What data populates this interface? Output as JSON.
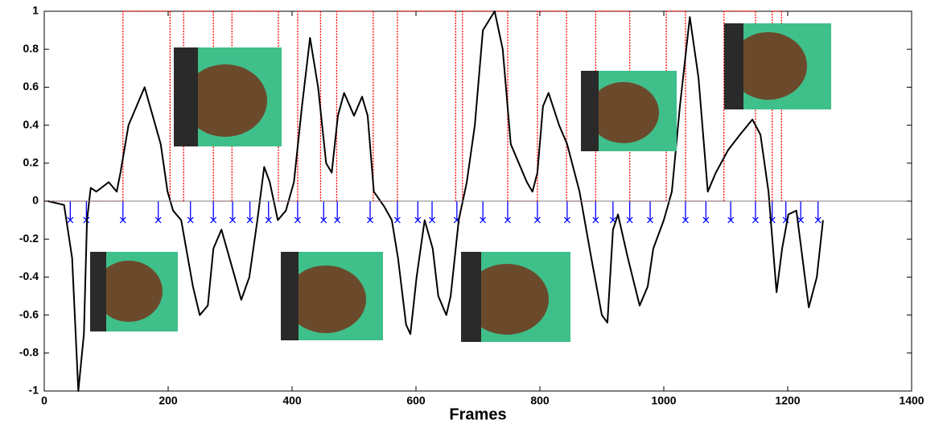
{
  "chart_data": {
    "type": "line",
    "xlabel": "Frames",
    "xlim": [
      0,
      1400
    ],
    "xticks": [
      0,
      200,
      400,
      600,
      800,
      1000,
      1200,
      1400
    ],
    "ylim": [
      -1,
      1
    ],
    "yticks": [
      -1,
      -0.8,
      -0.6,
      -0.4,
      -0.2,
      0,
      0.2,
      0.4,
      0.6,
      0.8,
      1
    ],
    "zero_line": true,
    "series": [
      {
        "type": "step",
        "color": "#ff0000",
        "x": [
          0,
          127,
          203,
          225,
          273,
          303,
          378,
          409,
          446,
          472,
          531,
          570,
          664,
          675,
          748,
          796,
          843,
          890,
          945,
          1004,
          1035,
          1097,
          1148,
          1175,
          1190,
          1249
        ],
        "values": [
          0,
          1,
          0,
          1,
          0,
          1,
          0,
          1,
          0,
          1,
          0,
          1,
          0,
          1,
          0,
          1,
          0,
          1,
          0,
          1,
          0,
          1,
          0,
          1,
          0,
          0
        ]
      },
      {
        "type": "stem",
        "color": "#0000ff",
        "x": [
          42,
          68,
          127,
          184,
          236,
          273,
          304,
          332,
          362,
          409,
          451,
          473,
          526,
          570,
          603,
          626,
          666,
          708,
          748,
          796,
          844,
          890,
          918,
          945,
          978,
          1035,
          1068,
          1108,
          1148,
          1175,
          1197,
          1221,
          1249
        ],
        "values": [
          -0.1,
          -0.1,
          -0.1,
          -0.1,
          -0.1,
          -0.1,
          -0.1,
          -0.1,
          -0.1,
          -0.1,
          -0.1,
          -0.1,
          -0.1,
          -0.1,
          -0.1,
          -0.1,
          -0.1,
          -0.1,
          -0.1,
          -0.1,
          -0.1,
          -0.1,
          -0.1,
          -0.1,
          -0.1,
          -0.1,
          -0.1,
          -0.1,
          -0.1,
          -0.1,
          -0.1,
          -0.1,
          -0.1
        ]
      },
      {
        "type": "line",
        "color": "#000000",
        "x": [
          6,
          32,
          45,
          55,
          64,
          69,
          75,
          84,
          104,
          117,
          123,
          136,
          149,
          162,
          175,
          188,
          199,
          208,
          221,
          240,
          251,
          264,
          273,
          286,
          299,
          318,
          331,
          344,
          355,
          364,
          377,
          390,
          403,
          416,
          429,
          442,
          455,
          464,
          474,
          484,
          500,
          513,
          522,
          532,
          549,
          561,
          571,
          584,
          591,
          601,
          614,
          627,
          636,
          649,
          656,
          669,
          682,
          695,
          708,
          727,
          740,
          753,
          766,
          779,
          788,
          796,
          805,
          814,
          831,
          844,
          864,
          883,
          900,
          909,
          918,
          926,
          942,
          961,
          974,
          983,
          1000,
          1013,
          1026,
          1042,
          1056,
          1071,
          1084,
          1104,
          1123,
          1143,
          1156,
          1169,
          1182,
          1191,
          1201,
          1214,
          1234,
          1247,
          1257
        ],
        "values": [
          0,
          -0.02,
          -0.3,
          -1,
          -0.7,
          -0.1,
          0.07,
          0.05,
          0.1,
          0.05,
          0.15,
          0.4,
          0.5,
          0.6,
          0.45,
          0.3,
          0.05,
          -0.05,
          -0.1,
          -0.45,
          -0.6,
          -0.55,
          -0.25,
          -0.15,
          -0.3,
          -0.52,
          -0.4,
          -0.1,
          0.18,
          0.1,
          -0.1,
          -0.05,
          0.1,
          0.5,
          0.86,
          0.6,
          0.2,
          0.15,
          0.45,
          0.57,
          0.45,
          0.55,
          0.45,
          0.05,
          -0.03,
          -0.1,
          -0.3,
          -0.65,
          -0.7,
          -0.4,
          -0.1,
          -0.25,
          -0.5,
          -0.6,
          -0.5,
          -0.1,
          0.1,
          0.4,
          0.9,
          1,
          0.8,
          0.3,
          0.2,
          0.1,
          0.05,
          0.15,
          0.5,
          0.57,
          0.4,
          0.3,
          0.05,
          -0.3,
          -0.6,
          -0.64,
          -0.15,
          -0.07,
          -0.3,
          -0.55,
          -0.45,
          -0.25,
          -0.1,
          0.05,
          0.5,
          0.97,
          0.65,
          0.05,
          0.15,
          0.27,
          0.35,
          0.43,
          0.35,
          0.05,
          -0.48,
          -0.25,
          -0.07,
          -0.05,
          -0.56,
          -0.4,
          -0.1
        ]
      }
    ]
  }
}
